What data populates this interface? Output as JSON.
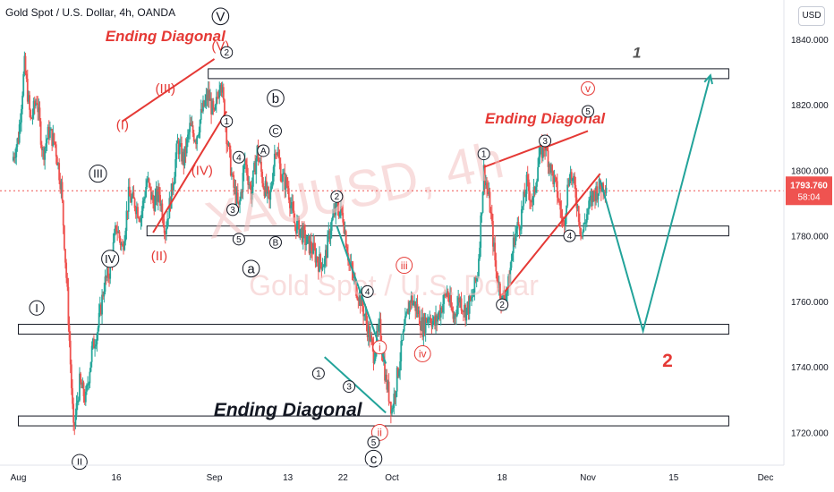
{
  "header": {
    "symbol_line": "Gold Spot / U.S. Dollar, 4h, OANDA",
    "currency_button": "USD"
  },
  "watermark": {
    "ticker": "XAUUSD, 4h",
    "name": "Gold Spot / U.S. Dollar"
  },
  "price_tag": {
    "price": "1793.760",
    "countdown": "58:04"
  },
  "chart_data": {
    "type": "candlestick",
    "y_ticks": [
      1720,
      1740,
      1760,
      1780,
      1800,
      1820,
      1840
    ],
    "y_tick_labels": [
      "1720.000",
      "1740.000",
      "1760.000",
      "1780.000",
      "1800.000",
      "1820.000",
      "1840.000"
    ],
    "ylim": [
      1710,
      1852
    ],
    "x_ticks": [
      {
        "label": "Aug",
        "day": -4
      },
      {
        "label": "16",
        "day": 12
      },
      {
        "label": "Sep",
        "day": 28
      },
      {
        "label": "13",
        "day": 40
      },
      {
        "label": "22",
        "day": 49
      },
      {
        "label": "Oct",
        "day": 57
      },
      {
        "label": "18",
        "day": 75
      },
      {
        "label": "Nov",
        "day": 89
      },
      {
        "label": "15",
        "day": 103
      },
      {
        "label": "Dec",
        "day": 118
      }
    ],
    "xlim": [
      -7,
      121
    ],
    "colors": {
      "up": "#26a69a",
      "down": "#ef5350",
      "accent": "#e53935",
      "projection": "#22a39a",
      "axis_text": "#131722"
    },
    "price_path": [
      [
        -5,
        1803
      ],
      [
        -4,
        1810
      ],
      [
        -3,
        1832
      ],
      [
        -2,
        1815
      ],
      [
        -1,
        1822
      ],
      [
        0,
        1805
      ],
      [
        1,
        1812
      ],
      [
        2,
        1808
      ],
      [
        3,
        1795
      ],
      [
        4,
        1762
      ],
      [
        5,
        1720
      ],
      [
        6,
        1735
      ],
      [
        7,
        1730
      ],
      [
        8,
        1745
      ],
      [
        9,
        1752
      ],
      [
        10,
        1765
      ],
      [
        11,
        1770
      ],
      [
        12,
        1783
      ],
      [
        13,
        1776
      ],
      [
        14,
        1792
      ],
      [
        15,
        1790
      ],
      [
        16,
        1786
      ],
      [
        17,
        1797
      ],
      [
        18,
        1790
      ],
      [
        19,
        1793
      ],
      [
        20,
        1782
      ],
      [
        21,
        1793
      ],
      [
        22,
        1808
      ],
      [
        23,
        1803
      ],
      [
        24,
        1813
      ],
      [
        25,
        1810
      ],
      [
        26,
        1818
      ],
      [
        27,
        1823
      ],
      [
        28,
        1816
      ],
      [
        29,
        1829
      ],
      [
        30,
        1811
      ],
      [
        31,
        1796
      ],
      [
        32,
        1788
      ],
      [
        33,
        1803
      ],
      [
        34,
        1793
      ],
      [
        35,
        1806
      ],
      [
        36,
        1796
      ],
      [
        37,
        1790
      ],
      [
        38,
        1808
      ],
      [
        39,
        1798
      ],
      [
        40,
        1795
      ],
      [
        41,
        1784
      ],
      [
        42,
        1782
      ],
      [
        43,
        1778
      ],
      [
        44,
        1776
      ],
      [
        45,
        1772
      ],
      [
        46,
        1772
      ],
      [
        47,
        1783
      ],
      [
        48,
        1789
      ],
      [
        49,
        1786
      ],
      [
        50,
        1772
      ],
      [
        51,
        1765
      ],
      [
        52,
        1760
      ],
      [
        53,
        1752
      ],
      [
        54,
        1744
      ],
      [
        55,
        1752
      ],
      [
        56,
        1736
      ],
      [
        57,
        1727
      ],
      [
        58,
        1739
      ],
      [
        59,
        1751
      ],
      [
        60,
        1761
      ],
      [
        61,
        1758
      ],
      [
        62,
        1752
      ],
      [
        63,
        1756
      ],
      [
        64,
        1753
      ],
      [
        65,
        1758
      ],
      [
        66,
        1763
      ],
      [
        67,
        1755
      ],
      [
        68,
        1761
      ],
      [
        69,
        1757
      ],
      [
        70,
        1760
      ],
      [
        71,
        1769
      ],
      [
        72,
        1800
      ],
      [
        73,
        1789
      ],
      [
        74,
        1769
      ],
      [
        75,
        1760
      ],
      [
        76,
        1765
      ],
      [
        77,
        1780
      ],
      [
        78,
        1785
      ],
      [
        79,
        1796
      ],
      [
        80,
        1790
      ],
      [
        81,
        1804
      ],
      [
        82,
        1808
      ],
      [
        83,
        1800
      ],
      [
        84,
        1793
      ],
      [
        85,
        1783
      ],
      [
        86,
        1800
      ],
      [
        87,
        1793
      ],
      [
        88,
        1780
      ],
      [
        89,
        1788
      ],
      [
        90,
        1793
      ],
      [
        91,
        1795
      ],
      [
        92,
        1796
      ]
    ],
    "zones": [
      {
        "top": 1831,
        "bottom": 1828,
        "from_day": 27,
        "to_day": 112
      },
      {
        "top": 1783,
        "bottom": 1780,
        "from_day": 17,
        "to_day": 112
      },
      {
        "top": 1753,
        "bottom": 1750,
        "from_day": -4,
        "to_day": 112
      },
      {
        "top": 1725,
        "bottom": 1722,
        "from_day": -4,
        "to_day": 112
      }
    ],
    "price_line": 1793.76,
    "annotations": [
      {
        "text": "Ending Diagonal",
        "day": 20,
        "price": 1841,
        "color": "#e53935",
        "size": 17,
        "italic": true,
        "bold": true
      },
      {
        "text": "Ending Diagonal",
        "day": 82,
        "price": 1816,
        "color": "#e53935",
        "size": 17,
        "italic": true,
        "bold": true
      },
      {
        "text": "Ending Diagonal",
        "day": 40,
        "price": 1727,
        "color": "#131722",
        "size": 21,
        "italic": true,
        "bold": true
      },
      {
        "text": "1",
        "day": 97,
        "price": 1836,
        "color": "#555555",
        "size": 17,
        "italic": true,
        "bold": true
      },
      {
        "text": "2",
        "day": 102,
        "price": 1742,
        "color": "#e53935",
        "size": 21,
        "italic": false,
        "bold": true
      },
      {
        "text": "(V)",
        "day": 29,
        "price": 1838,
        "color": "#e53935",
        "size": 15
      },
      {
        "text": "(III)",
        "day": 20,
        "price": 1825,
        "color": "#e53935",
        "size": 15
      },
      {
        "text": "(I)",
        "day": 13,
        "price": 1814,
        "color": "#e53935",
        "size": 15
      },
      {
        "text": "(IV)",
        "day": 26,
        "price": 1800,
        "color": "#e53935",
        "size": 15
      },
      {
        "text": "(II)",
        "day": 19,
        "price": 1774,
        "color": "#e53935",
        "size": 15
      },
      {
        "text": "iii",
        "day": 59,
        "price": 1771,
        "color": "#e53935",
        "size": 12,
        "circle": true
      },
      {
        "text": "iv",
        "day": 62,
        "price": 1744,
        "color": "#e53935",
        "size": 12,
        "circle": true
      },
      {
        "text": "i",
        "day": 55,
        "price": 1746,
        "color": "#e53935",
        "size": 12,
        "circle": true
      },
      {
        "text": "ii",
        "day": 55,
        "price": 1720,
        "color": "#e53935",
        "size": 12,
        "circle": true
      },
      {
        "text": "v",
        "day": 89,
        "price": 1825,
        "color": "#e53935",
        "size": 12,
        "circle": true
      },
      {
        "text": "V",
        "day": 29,
        "price": 1847,
        "color": "#131722",
        "size": 15,
        "circle": true
      },
      {
        "text": "III",
        "day": 9,
        "price": 1799,
        "color": "#131722",
        "size": 13,
        "circle": true
      },
      {
        "text": "IV",
        "day": 11,
        "price": 1773,
        "color": "#131722",
        "size": 13,
        "circle": true
      },
      {
        "text": "I",
        "day": -1,
        "price": 1758,
        "color": "#131722",
        "size": 13,
        "circle": true
      },
      {
        "text": "II",
        "day": 6,
        "price": 1711,
        "color": "#131722",
        "size": 11,
        "circle": true
      },
      {
        "text": "b",
        "day": 38,
        "price": 1822,
        "color": "#131722",
        "size": 15,
        "circle": true
      },
      {
        "text": "a",
        "day": 34,
        "price": 1770,
        "color": "#131722",
        "size": 15,
        "circle": true
      },
      {
        "text": "c",
        "day": 54,
        "price": 1712,
        "color": "#131722",
        "size": 15,
        "circle": true
      },
      {
        "text": "2",
        "day": 30,
        "price": 1836,
        "color": "#131722",
        "size": 10,
        "circle": true
      },
      {
        "text": "1",
        "day": 30,
        "price": 1815,
        "color": "#131722",
        "size": 10,
        "circle": true
      },
      {
        "text": "4",
        "day": 32,
        "price": 1804,
        "color": "#131722",
        "size": 10,
        "circle": true
      },
      {
        "text": "A",
        "day": 36,
        "price": 1806,
        "color": "#131722",
        "size": 10,
        "circle": true
      },
      {
        "text": "C",
        "day": 38,
        "price": 1812,
        "color": "#131722",
        "size": 10,
        "circle": true
      },
      {
        "text": "3",
        "day": 31,
        "price": 1788,
        "color": "#131722",
        "size": 10,
        "circle": true
      },
      {
        "text": "5",
        "day": 32,
        "price": 1779,
        "color": "#131722",
        "size": 10,
        "circle": true
      },
      {
        "text": "B",
        "day": 38,
        "price": 1778,
        "color": "#131722",
        "size": 10,
        "circle": true
      },
      {
        "text": "2",
        "day": 48,
        "price": 1792,
        "color": "#131722",
        "size": 10,
        "circle": true
      },
      {
        "text": "4",
        "day": 53,
        "price": 1763,
        "color": "#131722",
        "size": 10,
        "circle": true
      },
      {
        "text": "1",
        "day": 45,
        "price": 1738,
        "color": "#131722",
        "size": 10,
        "circle": true
      },
      {
        "text": "3",
        "day": 50,
        "price": 1734,
        "color": "#131722",
        "size": 10,
        "circle": true
      },
      {
        "text": "5",
        "day": 54,
        "price": 1717,
        "color": "#131722",
        "size": 10,
        "circle": true
      },
      {
        "text": "1",
        "day": 72,
        "price": 1805,
        "color": "#131722",
        "size": 10,
        "circle": true
      },
      {
        "text": "3",
        "day": 82,
        "price": 1809,
        "color": "#131722",
        "size": 10,
        "circle": true
      },
      {
        "text": "5",
        "day": 89,
        "price": 1818,
        "color": "#131722",
        "size": 10,
        "circle": true
      },
      {
        "text": "2",
        "day": 75,
        "price": 1759,
        "color": "#131722",
        "size": 10,
        "circle": true
      },
      {
        "text": "4",
        "day": 86,
        "price": 1780,
        "color": "#131722",
        "size": 10,
        "circle": true
      }
    ],
    "lines": [
      {
        "points": [
          [
            13,
            1815
          ],
          [
            28,
            1834
          ]
        ],
        "color": "#e53935",
        "width": 2
      },
      {
        "points": [
          [
            18,
            1781
          ],
          [
            30,
            1818
          ]
        ],
        "color": "#e53935",
        "width": 2
      },
      {
        "points": [
          [
            72,
            1801
          ],
          [
            82,
            1808
          ]
        ],
        "color": "#e53935",
        "width": 2
      },
      {
        "points": [
          [
            75,
            1762
          ],
          [
            91,
            1799
          ]
        ],
        "color": "#e53935",
        "width": 2
      },
      {
        "points": [
          [
            82,
            1807
          ],
          [
            89,
            1812
          ]
        ],
        "color": "#e53935",
        "width": 2
      },
      {
        "points": [
          [
            48,
            1783
          ],
          [
            56,
            1741
          ]
        ],
        "color": "#22a39a",
        "width": 2
      },
      {
        "points": [
          [
            46,
            1743
          ],
          [
            56,
            1726
          ]
        ],
        "color": "#22a39a",
        "width": 2
      },
      {
        "points": [
          [
            91,
            1797
          ],
          [
            98,
            1751
          ],
          [
            109,
            1829
          ]
        ],
        "color": "#22a39a",
        "width": 2
      }
    ]
  }
}
